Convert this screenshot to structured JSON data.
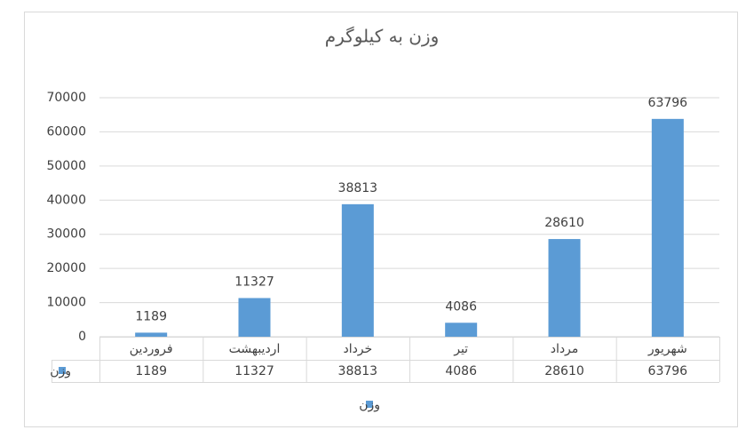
{
  "chart_data": {
    "type": "bar",
    "title": "وزن به کیلوگرم",
    "categories": [
      "فروردین",
      "اردیبهشت",
      "خرداد",
      "تیر",
      "مرداد",
      "شهریور"
    ],
    "series": [
      {
        "name": "وزن",
        "color": "#5b9bd5",
        "values": [
          1189,
          11327,
          38813,
          4086,
          28610,
          63796
        ]
      }
    ],
    "ylim": [
      0,
      70000
    ],
    "yticks": [
      0,
      10000,
      20000,
      30000,
      40000,
      50000,
      60000,
      70000
    ],
    "grid": true,
    "data_labels": true,
    "data_table": true,
    "legend": "bottom"
  }
}
